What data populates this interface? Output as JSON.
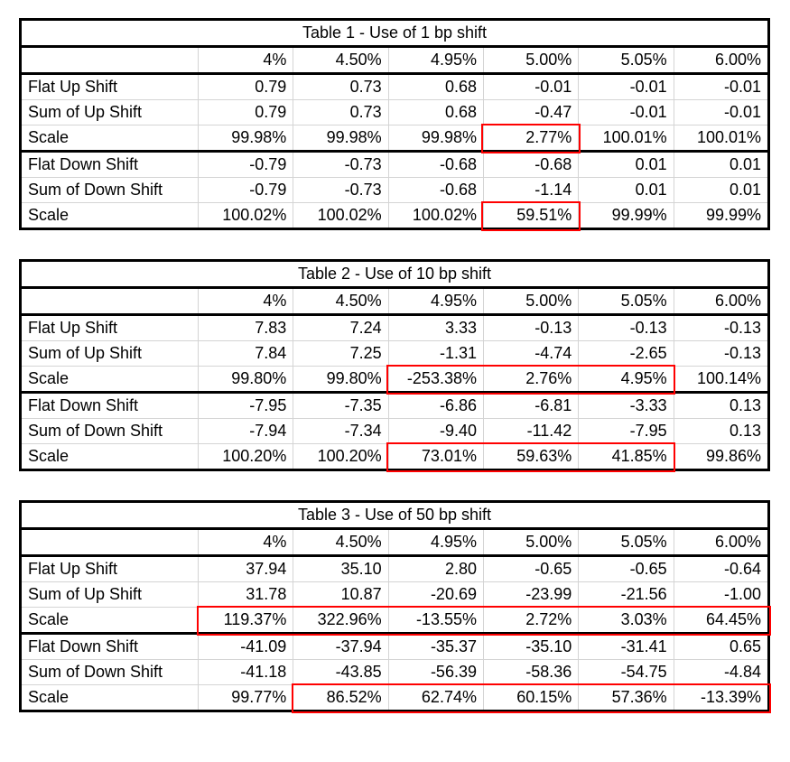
{
  "highlight_color": "#ff0000",
  "grid_color": "#d4d4d4",
  "columns": [
    "",
    "4%",
    "4.50%",
    "4.95%",
    "5.00%",
    "5.05%",
    "6.00%"
  ],
  "tables": [
    {
      "title": "Table 1 - Use of 1 bp shift",
      "rows": [
        {
          "label": "Flat Up Shift",
          "values": [
            "0.79",
            "0.73",
            "0.68",
            "-0.01",
            "-0.01",
            "-0.01"
          ]
        },
        {
          "label": "Sum of Up Shift",
          "values": [
            "0.79",
            "0.73",
            "0.68",
            "-0.47",
            "-0.01",
            "-0.01"
          ]
        },
        {
          "label": "Scale",
          "values": [
            "99.98%",
            "99.98%",
            "99.98%",
            "2.77%",
            "100.01%",
            "100.01%"
          ],
          "section_end": true
        },
        {
          "label": "Flat Down Shift",
          "values": [
            "-0.79",
            "-0.73",
            "-0.68",
            "-0.68",
            "0.01",
            "0.01"
          ]
        },
        {
          "label": "Sum of Down Shift",
          "values": [
            "-0.79",
            "-0.73",
            "-0.68",
            "-1.14",
            "0.01",
            "0.01"
          ]
        },
        {
          "label": "Scale",
          "values": [
            "100.02%",
            "100.02%",
            "100.02%",
            "59.51%",
            "99.99%",
            "99.99%"
          ]
        }
      ],
      "highlights": [
        {
          "row": 2,
          "col_from": 3,
          "col_to": 3
        },
        {
          "row": 5,
          "col_from": 3,
          "col_to": 3
        }
      ]
    },
    {
      "title": "Table 2 - Use of 10 bp shift",
      "rows": [
        {
          "label": "Flat Up Shift",
          "values": [
            "7.83",
            "7.24",
            "3.33",
            "-0.13",
            "-0.13",
            "-0.13"
          ]
        },
        {
          "label": "Sum of Up Shift",
          "values": [
            "7.84",
            "7.25",
            "-1.31",
            "-4.74",
            "-2.65",
            "-0.13"
          ]
        },
        {
          "label": "Scale",
          "values": [
            "99.80%",
            "99.80%",
            "-253.38%",
            "2.76%",
            "4.95%",
            "100.14%"
          ],
          "section_end": true
        },
        {
          "label": "Flat Down Shift",
          "values": [
            "-7.95",
            "-7.35",
            "-6.86",
            "-6.81",
            "-3.33",
            "0.13"
          ]
        },
        {
          "label": "Sum of Down Shift",
          "values": [
            "-7.94",
            "-7.34",
            "-9.40",
            "-11.42",
            "-7.95",
            "0.13"
          ]
        },
        {
          "label": "Scale",
          "values": [
            "100.20%",
            "100.20%",
            "73.01%",
            "59.63%",
            "41.85%",
            "99.86%"
          ]
        }
      ],
      "highlights": [
        {
          "row": 2,
          "col_from": 2,
          "col_to": 4
        },
        {
          "row": 5,
          "col_from": 2,
          "col_to": 4
        }
      ]
    },
    {
      "title": "Table 3 - Use of 50 bp shift",
      "rows": [
        {
          "label": "Flat Up Shift",
          "values": [
            "37.94",
            "35.10",
            "2.80",
            "-0.65",
            "-0.65",
            "-0.64"
          ]
        },
        {
          "label": "Sum of Up Shift",
          "values": [
            "31.78",
            "10.87",
            "-20.69",
            "-23.99",
            "-21.56",
            "-1.00"
          ]
        },
        {
          "label": "Scale",
          "values": [
            "119.37%",
            "322.96%",
            "-13.55%",
            "2.72%",
            "3.03%",
            "64.45%"
          ],
          "section_end": true
        },
        {
          "label": "Flat Down Shift",
          "values": [
            "-41.09",
            "-37.94",
            "-35.37",
            "-35.10",
            "-31.41",
            "0.65"
          ]
        },
        {
          "label": "Sum of Down Shift",
          "values": [
            "-41.18",
            "-43.85",
            "-56.39",
            "-58.36",
            "-54.75",
            "-4.84"
          ]
        },
        {
          "label": "Scale",
          "values": [
            "99.77%",
            "86.52%",
            "62.74%",
            "60.15%",
            "57.36%",
            "-13.39%"
          ]
        }
      ],
      "highlights": [
        {
          "row": 2,
          "col_from": 0,
          "col_to": 5
        },
        {
          "row": 5,
          "col_from": 1,
          "col_to": 5
        }
      ]
    }
  ]
}
